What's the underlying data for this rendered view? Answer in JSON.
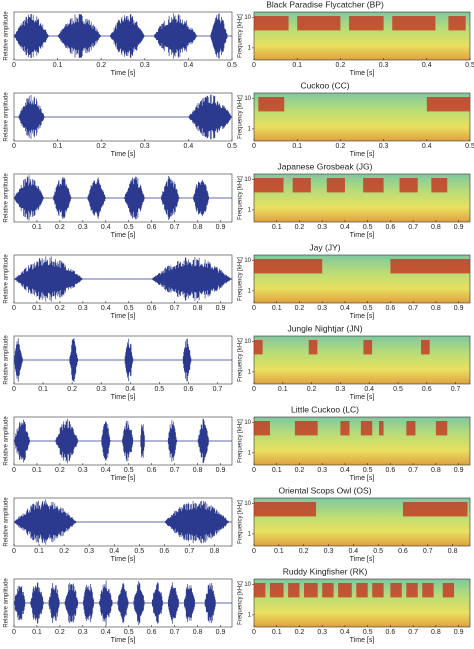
{
  "labels": {
    "amplitude": "Relative amplitude",
    "frequency": "Frequency [kHz]",
    "time": "Time [s]"
  },
  "freq_lim": [
    0.4,
    15
  ],
  "freq_ticks": [
    1,
    10
  ],
  "freq_log": true,
  "panels": [
    {
      "title": "Black Paradise Flycatcher (BP)",
      "xlim": [
        0,
        0.5
      ],
      "xticks": [
        0,
        0.1,
        0.2,
        0.3,
        0.4,
        0.5
      ],
      "bursts": [
        [
          0,
          0.08
        ],
        [
          0.1,
          0.2
        ],
        [
          0.22,
          0.3
        ],
        [
          0.32,
          0.42
        ],
        [
          0.45,
          0.49
        ]
      ]
    },
    {
      "title": "Cuckoo (CC)",
      "xlim": [
        0,
        0.5
      ],
      "xticks": [
        0,
        0.1,
        0.2,
        0.3,
        0.4,
        0.5
      ],
      "bursts": [
        [
          0.01,
          0.07
        ],
        [
          0.4,
          0.5
        ]
      ]
    },
    {
      "title": "Japanese Grosbeak (JG)",
      "xlim": [
        0,
        0.95
      ],
      "xticks": [
        0.1,
        0.2,
        0.3,
        0.4,
        0.5,
        0.6,
        0.7,
        0.8,
        0.9
      ],
      "bursts": [
        [
          0,
          0.13
        ],
        [
          0.17,
          0.25
        ],
        [
          0.32,
          0.4
        ],
        [
          0.48,
          0.57
        ],
        [
          0.64,
          0.72
        ],
        [
          0.78,
          0.85
        ]
      ]
    },
    {
      "title": "Jay (JY)",
      "xlim": [
        0,
        0.95
      ],
      "xticks": [
        0,
        0.1,
        0.2,
        0.3,
        0.4,
        0.5,
        0.6,
        0.7,
        0.8,
        0.9
      ],
      "bursts": [
        [
          0,
          0.3
        ],
        [
          0.6,
          0.95
        ]
      ]
    },
    {
      "title": "Jungle Nightjar (JN)",
      "xlim": [
        0,
        0.75
      ],
      "xticks": [
        0,
        0.1,
        0.2,
        0.3,
        0.4,
        0.5,
        0.6,
        0.7
      ],
      "bursts": [
        [
          0.0,
          0.03
        ],
        [
          0.19,
          0.22
        ],
        [
          0.38,
          0.41
        ],
        [
          0.58,
          0.61
        ]
      ]
    },
    {
      "title": "Little Cuckoo (LC)",
      "xlim": [
        0,
        0.95
      ],
      "xticks": [
        0,
        0.1,
        0.2,
        0.3,
        0.4,
        0.5,
        0.6,
        0.7,
        0.8,
        0.9
      ],
      "bursts": [
        [
          0,
          0.07
        ],
        [
          0.18,
          0.28
        ],
        [
          0.38,
          0.42
        ],
        [
          0.47,
          0.52
        ],
        [
          0.55,
          0.57
        ],
        [
          0.67,
          0.71
        ],
        [
          0.8,
          0.85
        ]
      ]
    },
    {
      "title": "Oriental Scops Owl (OS)",
      "xlim": [
        0,
        0.87
      ],
      "xticks": [
        0,
        0.1,
        0.2,
        0.3,
        0.4,
        0.5,
        0.6,
        0.7,
        0.8
      ],
      "bursts": [
        [
          0,
          0.25
        ],
        [
          0.6,
          0.86
        ]
      ]
    },
    {
      "title": "Ruddy Kingfisher (RK)",
      "xlim": [
        0,
        0.95
      ],
      "xticks": [
        0,
        0.1,
        0.2,
        0.3,
        0.4,
        0.5,
        0.6,
        0.7,
        0.8,
        0.9
      ],
      "bursts": [
        [
          0,
          0.05
        ],
        [
          0.07,
          0.13
        ],
        [
          0.15,
          0.2
        ],
        [
          0.22,
          0.28
        ],
        [
          0.3,
          0.35
        ],
        [
          0.37,
          0.43
        ],
        [
          0.45,
          0.5
        ],
        [
          0.52,
          0.57
        ],
        [
          0.6,
          0.65
        ],
        [
          0.67,
          0.72
        ],
        [
          0.74,
          0.79
        ],
        [
          0.83,
          0.88
        ]
      ]
    }
  ]
}
